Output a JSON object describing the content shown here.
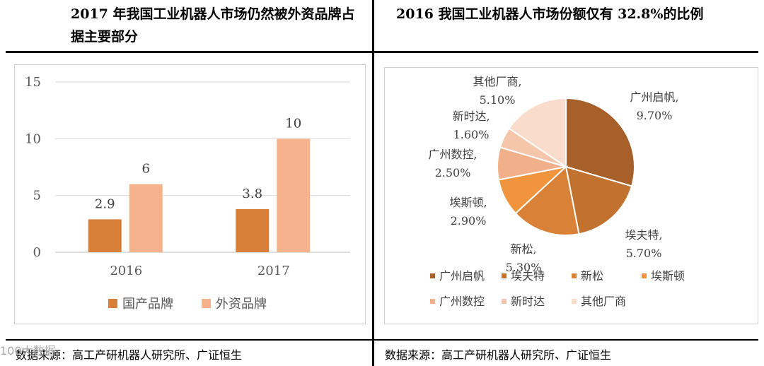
{
  "titles": {
    "left": "2017 年我国工业机器人市场仍然被外资品牌占据主要部分",
    "right": "2016 我国工业机器人市场份额仅有 32.8%的比例"
  },
  "sources": {
    "left": "数据来源：高工产研机器人研究所、广证恒生",
    "right": "数据来源：高工产研机器人研究所、广证恒生"
  },
  "watermark": "100大数据",
  "chart_data": [
    {
      "type": "bar",
      "categories": [
        "2016",
        "2017"
      ],
      "series": [
        {
          "name": "国产品牌",
          "values": [
            2.9,
            3.8
          ],
          "color": "#d8803a"
        },
        {
          "name": "外资品牌",
          "values": [
            6,
            10
          ],
          "color": "#f6b28d"
        }
      ],
      "data_labels": [
        [
          "2.9",
          "3.8"
        ],
        [
          "6",
          "10"
        ]
      ],
      "yticks": [
        "0",
        "5",
        "10",
        "15"
      ],
      "ylim": [
        0,
        15
      ],
      "grid": true,
      "legend": "bottom"
    },
    {
      "type": "pie",
      "slices": [
        {
          "name": "广州启帆",
          "label": "广州启帆,",
          "pct": "9.70%",
          "value": 9.7,
          "color": "#a8602a"
        },
        {
          "name": "埃夫特",
          "label": "埃夫特,",
          "pct": "5.70%",
          "value": 5.7,
          "color": "#c2722f"
        },
        {
          "name": "新松",
          "label": "新松,",
          "pct": "5.30%",
          "value": 5.3,
          "color": "#da8138"
        },
        {
          "name": "埃斯顿",
          "label": "埃斯顿,",
          "pct": "2.90%",
          "value": 2.9,
          "color": "#f0953e"
        },
        {
          "name": "广州数控",
          "label": "广州数控,",
          "pct": "2.50%",
          "value": 2.5,
          "color": "#f2b08a"
        },
        {
          "name": "新时达",
          "label": "新时达,",
          "pct": "1.60%",
          "value": 1.6,
          "color": "#f5c6aa"
        },
        {
          "name": "其他厂商",
          "label": "其他厂商,",
          "pct": "5.10%",
          "value": 5.1,
          "color": "#f9dccc"
        }
      ],
      "legend": "bottom"
    }
  ]
}
